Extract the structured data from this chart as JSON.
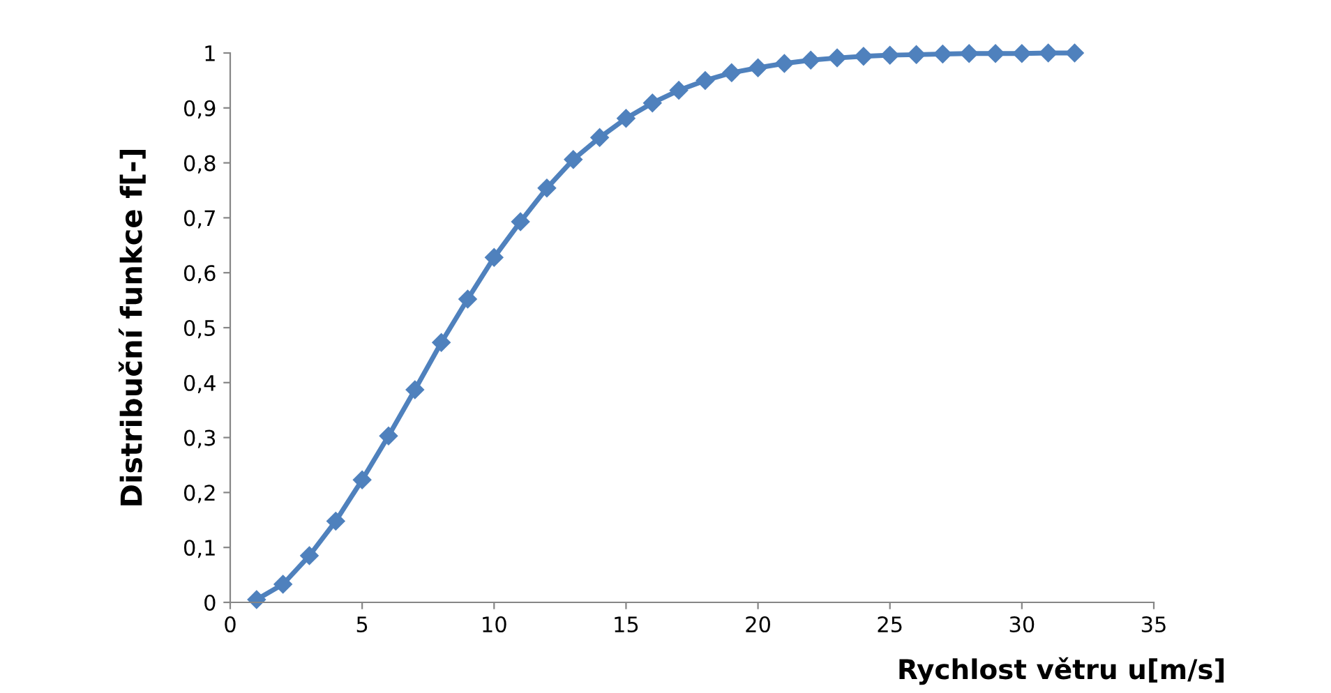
{
  "chart_data": {
    "type": "line",
    "xlabel": "Rychlost větru u[m/s]",
    "ylabel": "Distribuční funkce f[-]",
    "x": [
      1,
      2,
      3,
      4,
      5,
      6,
      7,
      8,
      9,
      10,
      11,
      12,
      13,
      14,
      15,
      16,
      17,
      18,
      19,
      20,
      21,
      22,
      23,
      24,
      25,
      26,
      27,
      28,
      29,
      30,
      31,
      32
    ],
    "series": [
      {
        "color": "#4f81bd",
        "values": [
          0.005,
          0.033,
          0.085,
          0.148,
          0.223,
          0.303,
          0.387,
          0.473,
          0.552,
          0.628,
          0.693,
          0.754,
          0.806,
          0.846,
          0.881,
          0.909,
          0.932,
          0.95,
          0.964,
          0.973,
          0.981,
          0.987,
          0.991,
          0.994,
          0.996,
          0.997,
          0.998,
          0.999,
          0.999,
          0.999,
          1.0,
          1.0
        ]
      }
    ],
    "xlim": [
      0,
      35
    ],
    "xticks": [
      0,
      5,
      10,
      15,
      20,
      25,
      30,
      35
    ],
    "ylim": [
      0,
      1
    ],
    "yticks": [
      {
        "value": 0,
        "label": "0"
      },
      {
        "value": 0.1,
        "label": "0,1"
      },
      {
        "value": 0.2,
        "label": "0,2"
      },
      {
        "value": 0.3,
        "label": "0,3"
      },
      {
        "value": 0.4,
        "label": "0,4"
      },
      {
        "value": 0.5,
        "label": "0,5"
      },
      {
        "value": 0.6,
        "label": "0,6"
      },
      {
        "value": 0.7,
        "label": "0,7"
      },
      {
        "value": 0.8,
        "label": "0,8"
      },
      {
        "value": 0.9,
        "label": "0,9"
      },
      {
        "value": 1,
        "label": "1"
      }
    ],
    "grid": false,
    "legend": false,
    "marker": "diamond",
    "line_style": "solid"
  }
}
